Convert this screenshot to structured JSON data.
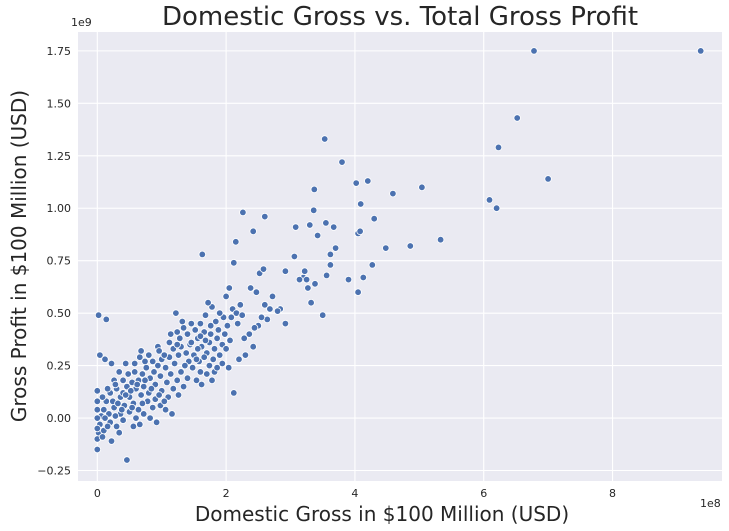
{
  "chart_data": {
    "type": "scatter",
    "title": "Domestic Gross vs. Total Gross Profit",
    "xlabel": "Domestic Gross in $100 Million (USD)",
    "ylabel": "Gross Profit in $100 Million (USD)",
    "x_offset_label": "1e8",
    "y_offset_label": "1e9",
    "xlim": [
      -0.3,
      9.7
    ],
    "ylim": [
      -0.3,
      1.84
    ],
    "x_ticks": [
      0,
      2,
      4,
      6,
      8
    ],
    "x_tick_labels": [
      "0",
      "2",
      "4",
      "6",
      "8"
    ],
    "y_ticks": [
      -0.25,
      0,
      0.25,
      0.5,
      0.75,
      1.0,
      1.25,
      1.5,
      1.75
    ],
    "y_tick_labels": [
      "−0.25",
      "0.00",
      "0.25",
      "0.50",
      "0.75",
      "1.00",
      "1.25",
      "1.50",
      "1.75"
    ],
    "grid": true,
    "colors": {
      "background": "#eaeaf2",
      "point": "#4c72b0",
      "grid": "#ffffff"
    },
    "points": [
      [
        9.37,
        1.75
      ],
      [
        6.78,
        1.75
      ],
      [
        6.52,
        1.43
      ],
      [
        6.23,
        1.29
      ],
      [
        7.0,
        1.14
      ],
      [
        6.09,
        1.04
      ],
      [
        6.2,
        1.0
      ],
      [
        5.33,
        0.85
      ],
      [
        5.04,
        1.1
      ],
      [
        4.86,
        0.82
      ],
      [
        4.59,
        1.07
      ],
      [
        4.48,
        0.81
      ],
      [
        4.3,
        0.95
      ],
      [
        4.2,
        1.13
      ],
      [
        4.02,
        1.12
      ],
      [
        4.09,
        1.02
      ],
      [
        4.05,
        0.88
      ],
      [
        4.08,
        0.89
      ],
      [
        3.8,
        1.22
      ],
      [
        3.53,
        1.33
      ],
      [
        3.37,
        1.09
      ],
      [
        3.36,
        0.99
      ],
      [
        3.42,
        0.87
      ],
      [
        3.55,
        0.93
      ],
      [
        3.67,
        0.91
      ],
      [
        3.62,
        0.78
      ],
      [
        3.7,
        0.81
      ],
      [
        3.62,
        0.73
      ],
      [
        3.56,
        0.68
      ],
      [
        3.5,
        0.49
      ],
      [
        3.9,
        0.66
      ],
      [
        4.13,
        0.67
      ],
      [
        4.27,
        0.73
      ],
      [
        4.05,
        0.6
      ],
      [
        3.3,
        0.92
      ],
      [
        3.08,
        0.91
      ],
      [
        2.92,
        0.7
      ],
      [
        3.06,
        0.77
      ],
      [
        3.2,
        0.67
      ],
      [
        3.25,
        0.66
      ],
      [
        3.27,
        0.62
      ],
      [
        3.38,
        0.64
      ],
      [
        3.32,
        0.55
      ],
      [
        3.22,
        0.7
      ],
      [
        3.14,
        0.66
      ],
      [
        2.6,
        0.96
      ],
      [
        2.42,
        0.89
      ],
      [
        2.26,
        0.98
      ],
      [
        2.15,
        0.84
      ],
      [
        2.12,
        0.74
      ],
      [
        1.63,
        0.78
      ],
      [
        2.52,
        0.69
      ],
      [
        2.58,
        0.71
      ],
      [
        2.47,
        0.6
      ],
      [
        2.38,
        0.62
      ],
      [
        2.6,
        0.54
      ],
      [
        2.72,
        0.58
      ],
      [
        2.84,
        0.52
      ],
      [
        2.92,
        0.45
      ],
      [
        2.8,
        0.51
      ],
      [
        2.68,
        0.52
      ],
      [
        2.64,
        0.47
      ],
      [
        2.55,
        0.48
      ],
      [
        2.5,
        0.44
      ],
      [
        2.44,
        0.43
      ],
      [
        2.36,
        0.4
      ],
      [
        2.28,
        0.38
      ],
      [
        2.42,
        0.34
      ],
      [
        2.3,
        0.3
      ],
      [
        2.2,
        0.28
      ],
      [
        2.12,
        0.12
      ],
      [
        2.05,
        0.62
      ],
      [
        2.0,
        0.58
      ],
      [
        2.1,
        0.52
      ],
      [
        2.16,
        0.5
      ],
      [
        2.22,
        0.54
      ],
      [
        2.25,
        0.49
      ],
      [
        2.18,
        0.45
      ],
      [
        2.08,
        0.48
      ],
      [
        2.02,
        0.44
      ],
      [
        1.96,
        0.48
      ],
      [
        1.9,
        0.5
      ],
      [
        1.84,
        0.46
      ],
      [
        1.78,
        0.53
      ],
      [
        1.72,
        0.55
      ],
      [
        1.68,
        0.49
      ],
      [
        1.76,
        0.44
      ],
      [
        1.88,
        0.42
      ],
      [
        1.98,
        0.4
      ],
      [
        2.06,
        0.37
      ],
      [
        1.94,
        0.35
      ],
      [
        1.86,
        0.38
      ],
      [
        1.82,
        0.33
      ],
      [
        1.74,
        0.36
      ],
      [
        1.66,
        0.41
      ],
      [
        1.6,
        0.45
      ],
      [
        1.56,
        0.38
      ],
      [
        1.62,
        0.34
      ],
      [
        1.7,
        0.31
      ],
      [
        1.8,
        0.28
      ],
      [
        1.9,
        0.3
      ],
      [
        2.0,
        0.33
      ],
      [
        1.52,
        0.42
      ],
      [
        1.46,
        0.45
      ],
      [
        1.4,
        0.4
      ],
      [
        1.34,
        0.43
      ],
      [
        1.28,
        0.38
      ],
      [
        1.22,
        0.5
      ],
      [
        1.3,
        0.34
      ],
      [
        1.38,
        0.31
      ],
      [
        1.44,
        0.35
      ],
      [
        1.5,
        0.3
      ],
      [
        1.58,
        0.27
      ],
      [
        1.66,
        0.29
      ],
      [
        1.74,
        0.25
      ],
      [
        1.82,
        0.22
      ],
      [
        1.48,
        0.24
      ],
      [
        1.42,
        0.27
      ],
      [
        1.36,
        0.25
      ],
      [
        1.26,
        0.3
      ],
      [
        1.18,
        0.33
      ],
      [
        1.12,
        0.29
      ],
      [
        1.2,
        0.26
      ],
      [
        1.3,
        0.22
      ],
      [
        1.4,
        0.19
      ],
      [
        1.54,
        0.18
      ],
      [
        1.62,
        0.16
      ],
      [
        1.34,
        0.15
      ],
      [
        1.24,
        0.18
      ],
      [
        1.14,
        0.21
      ],
      [
        1.06,
        0.24
      ],
      [
        1.0,
        0.28
      ],
      [
        0.94,
        0.25
      ],
      [
        0.88,
        0.22
      ],
      [
        0.98,
        0.2
      ],
      [
        1.08,
        0.17
      ],
      [
        1.18,
        0.14
      ],
      [
        1.26,
        0.11
      ],
      [
        1.1,
        0.1
      ],
      [
        1.0,
        0.13
      ],
      [
        0.9,
        0.16
      ],
      [
        0.82,
        0.19
      ],
      [
        0.76,
        0.24
      ],
      [
        0.7,
        0.21
      ],
      [
        0.64,
        0.18
      ],
      [
        0.72,
        0.15
      ],
      [
        0.8,
        0.12
      ],
      [
        0.9,
        0.09
      ],
      [
        0.98,
        0.06
      ],
      [
        1.06,
        0.04
      ],
      [
        1.16,
        0.02
      ],
      [
        0.86,
        0.05
      ],
      [
        0.78,
        0.08
      ],
      [
        0.68,
        0.11
      ],
      [
        0.6,
        0.14
      ],
      [
        0.54,
        0.17
      ],
      [
        0.48,
        0.21
      ],
      [
        0.58,
        0.26
      ],
      [
        0.66,
        0.29
      ],
      [
        0.5,
        0.1
      ],
      [
        0.56,
        0.07
      ],
      [
        0.64,
        0.04
      ],
      [
        0.72,
        0.02
      ],
      [
        0.82,
        0.0
      ],
      [
        0.92,
        -0.02
      ],
      [
        0.6,
        0.0
      ],
      [
        0.5,
        0.03
      ],
      [
        0.42,
        0.06
      ],
      [
        0.36,
        0.1
      ],
      [
        0.3,
        0.14
      ],
      [
        0.26,
        0.18
      ],
      [
        0.2,
        0.12
      ],
      [
        0.14,
        0.08
      ],
      [
        0.1,
        0.04
      ],
      [
        0.06,
        0.01
      ],
      [
        0.04,
        -0.03
      ],
      [
        0.02,
        -0.07
      ],
      [
        0.0,
        -0.1
      ],
      [
        0.0,
        -0.15
      ],
      [
        0.1,
        -0.06
      ],
      [
        0.2,
        -0.02
      ],
      [
        0.3,
        -0.04
      ],
      [
        0.4,
        -0.01
      ],
      [
        0.46,
        -0.2
      ],
      [
        0.56,
        -0.04
      ],
      [
        0.66,
        -0.03
      ],
      [
        0.36,
        0.02
      ],
      [
        0.26,
        0.05
      ],
      [
        0.18,
        0.02
      ],
      [
        0.12,
        0.0
      ],
      [
        0.24,
        0.08
      ],
      [
        0.32,
        0.07
      ],
      [
        0.4,
        0.12
      ],
      [
        0.46,
        0.15
      ],
      [
        0.4,
        0.18
      ],
      [
        0.34,
        0.22
      ],
      [
        0.22,
        0.26
      ],
      [
        0.12,
        0.28
      ],
      [
        0.04,
        0.3
      ],
      [
        0.0,
        0.13
      ],
      [
        0.02,
        0.49
      ],
      [
        0.14,
        0.47
      ],
      [
        0.0,
        0.08
      ],
      [
        0.0,
        0.04
      ],
      [
        0.0,
        0.0
      ],
      [
        0.0,
        -0.05
      ],
      [
        0.08,
        0.1
      ],
      [
        0.16,
        0.14
      ],
      [
        0.28,
        0.16
      ],
      [
        0.44,
        0.26
      ],
      [
        0.68,
        0.32
      ],
      [
        0.8,
        0.3
      ],
      [
        0.94,
        0.34
      ],
      [
        1.04,
        0.3
      ],
      [
        0.86,
        0.27
      ],
      [
        1.12,
        0.36
      ],
      [
        1.24,
        0.41
      ],
      [
        1.32,
        0.46
      ],
      [
        1.14,
        0.4
      ],
      [
        1.46,
        0.36
      ],
      [
        1.56,
        0.33
      ],
      [
        1.24,
        0.35
      ],
      [
        0.96,
        0.32
      ],
      [
        0.74,
        0.27
      ],
      [
        0.58,
        0.22
      ],
      [
        0.44,
        0.11
      ],
      [
        0.52,
        0.13
      ],
      [
        0.62,
        0.16
      ],
      [
        0.74,
        0.18
      ],
      [
        0.84,
        0.14
      ],
      [
        0.96,
        0.11
      ],
      [
        1.04,
        0.08
      ],
      [
        0.7,
        0.07
      ],
      [
        0.54,
        0.05
      ],
      [
        0.38,
        0.04
      ],
      [
        0.28,
        0.01
      ],
      [
        0.16,
        -0.04
      ],
      [
        0.08,
        -0.09
      ],
      [
        0.22,
        -0.11
      ],
      [
        0.34,
        -0.07
      ],
      [
        1.6,
        0.22
      ],
      [
        1.7,
        0.21
      ],
      [
        1.78,
        0.18
      ],
      [
        1.86,
        0.24
      ],
      [
        1.94,
        0.26
      ],
      [
        2.04,
        0.24
      ],
      [
        1.54,
        0.28
      ],
      [
        1.6,
        0.39
      ],
      [
        1.68,
        0.37
      ],
      [
        1.76,
        0.4
      ]
    ]
  }
}
